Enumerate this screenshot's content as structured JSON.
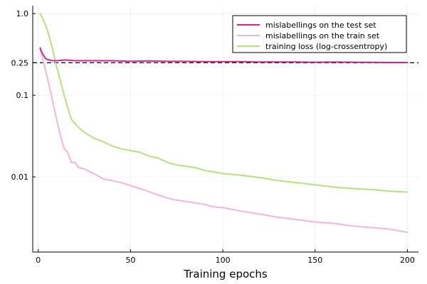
{
  "chart_data": {
    "type": "line",
    "title": "",
    "xlabel": "Training epochs",
    "ylabel": "",
    "xlim": [
      -3,
      206
    ],
    "ylim": [
      0.0012,
      1.25
    ],
    "y_scale": "log",
    "grid": true,
    "legend_position": "top-right",
    "x_ticks": [
      0,
      50,
      100,
      150,
      200
    ],
    "x_tick_labels": [
      "0",
      "50",
      "100",
      "150",
      "200"
    ],
    "y_ticks": [
      0.01,
      0.1,
      0.25,
      1.0
    ],
    "y_tick_labels": [
      "0.01",
      "0.1",
      "0.25",
      "1.0"
    ],
    "reference_line": {
      "y": 0.25,
      "style": "dashed",
      "color": "#000000"
    },
    "series": [
      {
        "name": "mislabellings on the test set",
        "color": "#d1258f",
        "x": [
          1,
          2,
          4,
          6,
          8,
          10,
          15,
          20,
          30,
          40,
          50,
          60,
          70,
          80,
          90,
          100,
          110,
          120,
          130,
          140,
          150,
          160,
          170,
          180,
          190,
          200
        ],
        "y": [
          0.38,
          0.33,
          0.28,
          0.27,
          0.265,
          0.265,
          0.27,
          0.265,
          0.265,
          0.265,
          0.26,
          0.263,
          0.26,
          0.26,
          0.258,
          0.258,
          0.258,
          0.255,
          0.256,
          0.255,
          0.254,
          0.255,
          0.254,
          0.253,
          0.252,
          0.252
        ]
      },
      {
        "name": "mislabellings on the train set",
        "color": "#f2b6de",
        "x": [
          1,
          2,
          4,
          6,
          8,
          10,
          12,
          14,
          16,
          17,
          18,
          20,
          22,
          25,
          28,
          30,
          35,
          40,
          45,
          50,
          55,
          60,
          65,
          70,
          75,
          80,
          85,
          90,
          95,
          100,
          110,
          120,
          130,
          140,
          150,
          160,
          170,
          180,
          190,
          200
        ],
        "y": [
          0.38,
          0.3,
          0.2,
          0.13,
          0.08,
          0.05,
          0.032,
          0.022,
          0.02,
          0.017,
          0.015,
          0.015,
          0.013,
          0.0125,
          0.0115,
          0.011,
          0.0095,
          0.009,
          0.0085,
          0.0078,
          0.0072,
          0.0066,
          0.006,
          0.0055,
          0.0052,
          0.005,
          0.0048,
          0.0046,
          0.0043,
          0.0042,
          0.0038,
          0.0035,
          0.0032,
          0.003,
          0.0028,
          0.0027,
          0.0025,
          0.0024,
          0.0023,
          0.0021
        ]
      },
      {
        "name": "training loss (log-crossentropy)",
        "color": "#b5e07c",
        "x": [
          1,
          2,
          4,
          6,
          8,
          10,
          12,
          14,
          16,
          18,
          20,
          22,
          25,
          28,
          30,
          35,
          40,
          45,
          50,
          55,
          60,
          65,
          70,
          75,
          80,
          85,
          90,
          95,
          100,
          110,
          120,
          130,
          140,
          150,
          160,
          170,
          180,
          190,
          200
        ],
        "y": [
          1.0,
          0.9,
          0.72,
          0.52,
          0.35,
          0.22,
          0.15,
          0.1,
          0.07,
          0.05,
          0.045,
          0.04,
          0.035,
          0.032,
          0.03,
          0.027,
          0.024,
          0.022,
          0.021,
          0.02,
          0.018,
          0.017,
          0.015,
          0.014,
          0.0135,
          0.013,
          0.012,
          0.0115,
          0.011,
          0.0105,
          0.0098,
          0.009,
          0.0085,
          0.008,
          0.0075,
          0.0072,
          0.007,
          0.0067,
          0.0065
        ]
      }
    ]
  }
}
